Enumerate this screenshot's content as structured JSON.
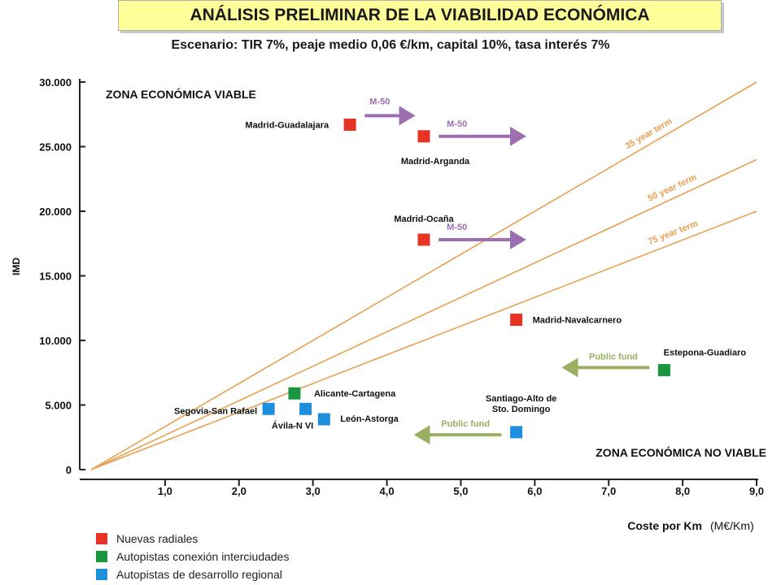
{
  "title": "ANÁLISIS PRELIMINAR DE LA VIABILIDAD ECONÓMICA",
  "subtitle": "Escenario: TIR 7%, peaje medio 0,06 €/km, capital 10%, tasa interés 7%",
  "colors": {
    "radiales": "#e63323",
    "interciudades": "#1a9640",
    "regional": "#1e8fdc",
    "term_line": "#e8a050",
    "m50_arrow": "#9b6fb0",
    "public_arrow": "#9ab060",
    "zone_text": "#111111"
  },
  "chart_data": {
    "type": "scatter",
    "xlabel": "Coste por Km",
    "xunit": "(M€/Km)",
    "ylabel": "IMD",
    "xlim": [
      0,
      9.0
    ],
    "ylim": [
      0,
      30000
    ],
    "xticks": [
      "1,0",
      "2,0",
      "3,0",
      "4,0",
      "5,0",
      "6,0",
      "7,0",
      "8,0",
      "9,0"
    ],
    "yticks": [
      "0",
      "5.000",
      "10.000",
      "15.000",
      "20.000",
      "25.000",
      "30.000"
    ],
    "grid": false,
    "zones": {
      "viable": "ZONA ECONÓMICA VIABLE",
      "no_viable": "ZONA ECONÓMICA NO VIABLE"
    },
    "term_lines": [
      {
        "label": "35 year term",
        "x": [
          0,
          9.0
        ],
        "y": [
          0,
          30000
        ]
      },
      {
        "label": "50 year term",
        "x": [
          0,
          9.0
        ],
        "y": [
          0,
          24000
        ]
      },
      {
        "label": "75 year term",
        "x": [
          0,
          9.0
        ],
        "y": [
          0,
          20000
        ]
      }
    ],
    "points": [
      {
        "name": "Madrid-Guadalajara",
        "category": "radiales",
        "x": 3.5,
        "y": 26700
      },
      {
        "name": "Madrid-Arganda",
        "category": "radiales",
        "x": 4.5,
        "y": 25800
      },
      {
        "name": "Madrid-Ocaña",
        "category": "radiales",
        "x": 4.5,
        "y": 17800
      },
      {
        "name": "Madrid-Navalcarnero",
        "category": "radiales",
        "x": 5.75,
        "y": 11600
      },
      {
        "name": "Estepona-Guadiaro",
        "category": "interciudades",
        "x": 7.75,
        "y": 7700
      },
      {
        "name": "Alicante-Cartagena",
        "category": "interciudades",
        "x": 2.75,
        "y": 5900
      },
      {
        "name": "Segovia-San Rafael",
        "category": "regional",
        "x": 2.4,
        "y": 4700
      },
      {
        "name": "Ávila-N VI",
        "category": "regional",
        "x": 2.9,
        "y": 4700
      },
      {
        "name": "León-Astorga",
        "category": "regional",
        "x": 3.15,
        "y": 3900
      },
      {
        "name": "Santiago-Alto de Sto. Domingo",
        "category": "regional",
        "x": 5.75,
        "y": 2900
      }
    ],
    "arrows": [
      {
        "label": "M-50",
        "type": "m50",
        "from": [
          3.7,
          27400
        ],
        "to": [
          4.35,
          27400
        ]
      },
      {
        "label": "M-50",
        "type": "m50",
        "from": [
          4.7,
          25800
        ],
        "to": [
          5.85,
          25800
        ]
      },
      {
        "label": "M-50",
        "type": "m50",
        "from": [
          4.7,
          17800
        ],
        "to": [
          5.85,
          17800
        ]
      },
      {
        "label": "Public fund",
        "type": "public",
        "from": [
          7.55,
          7900
        ],
        "to": [
          6.4,
          7900
        ]
      },
      {
        "label": "Public fund",
        "type": "public",
        "from": [
          5.55,
          2700
        ],
        "to": [
          4.4,
          2700
        ]
      }
    ],
    "legend": [
      {
        "category": "radiales",
        "label": "Nuevas radiales"
      },
      {
        "category": "interciudades",
        "label": "Autopistas conexión interciudades"
      },
      {
        "category": "regional",
        "label": "Autopistas de desarrollo regional"
      }
    ]
  }
}
